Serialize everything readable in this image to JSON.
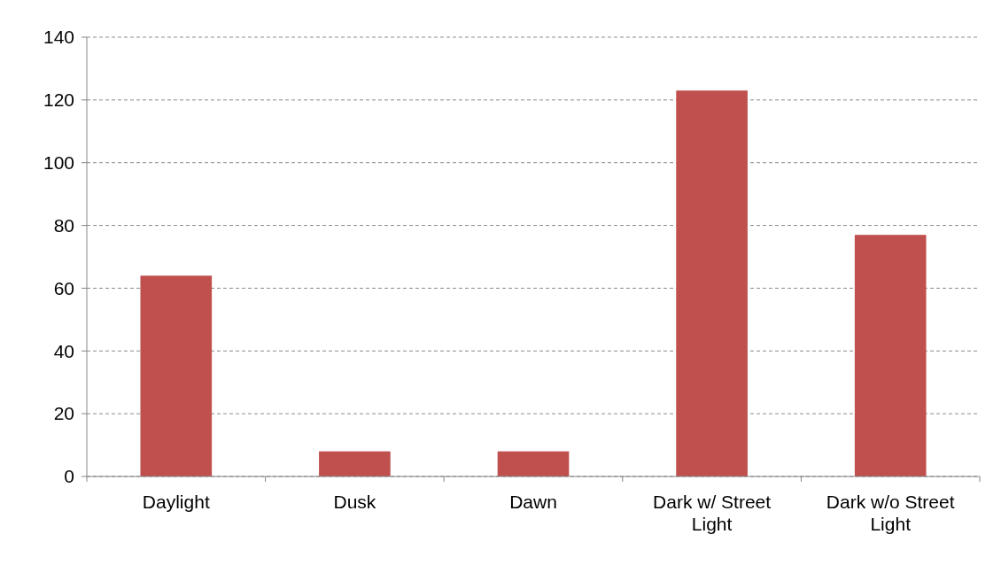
{
  "chart_data": {
    "type": "bar",
    "categories": [
      "Daylight",
      "Dusk",
      "Dawn",
      "Dark w/ Street Light",
      "Dark w/o Street Light"
    ],
    "values": [
      64,
      8,
      8,
      123,
      77
    ],
    "color": "#c0504d",
    "ylim": [
      0,
      140
    ],
    "yticks": [
      0,
      20,
      40,
      60,
      80,
      100,
      120,
      140
    ],
    "grid": "y"
  }
}
